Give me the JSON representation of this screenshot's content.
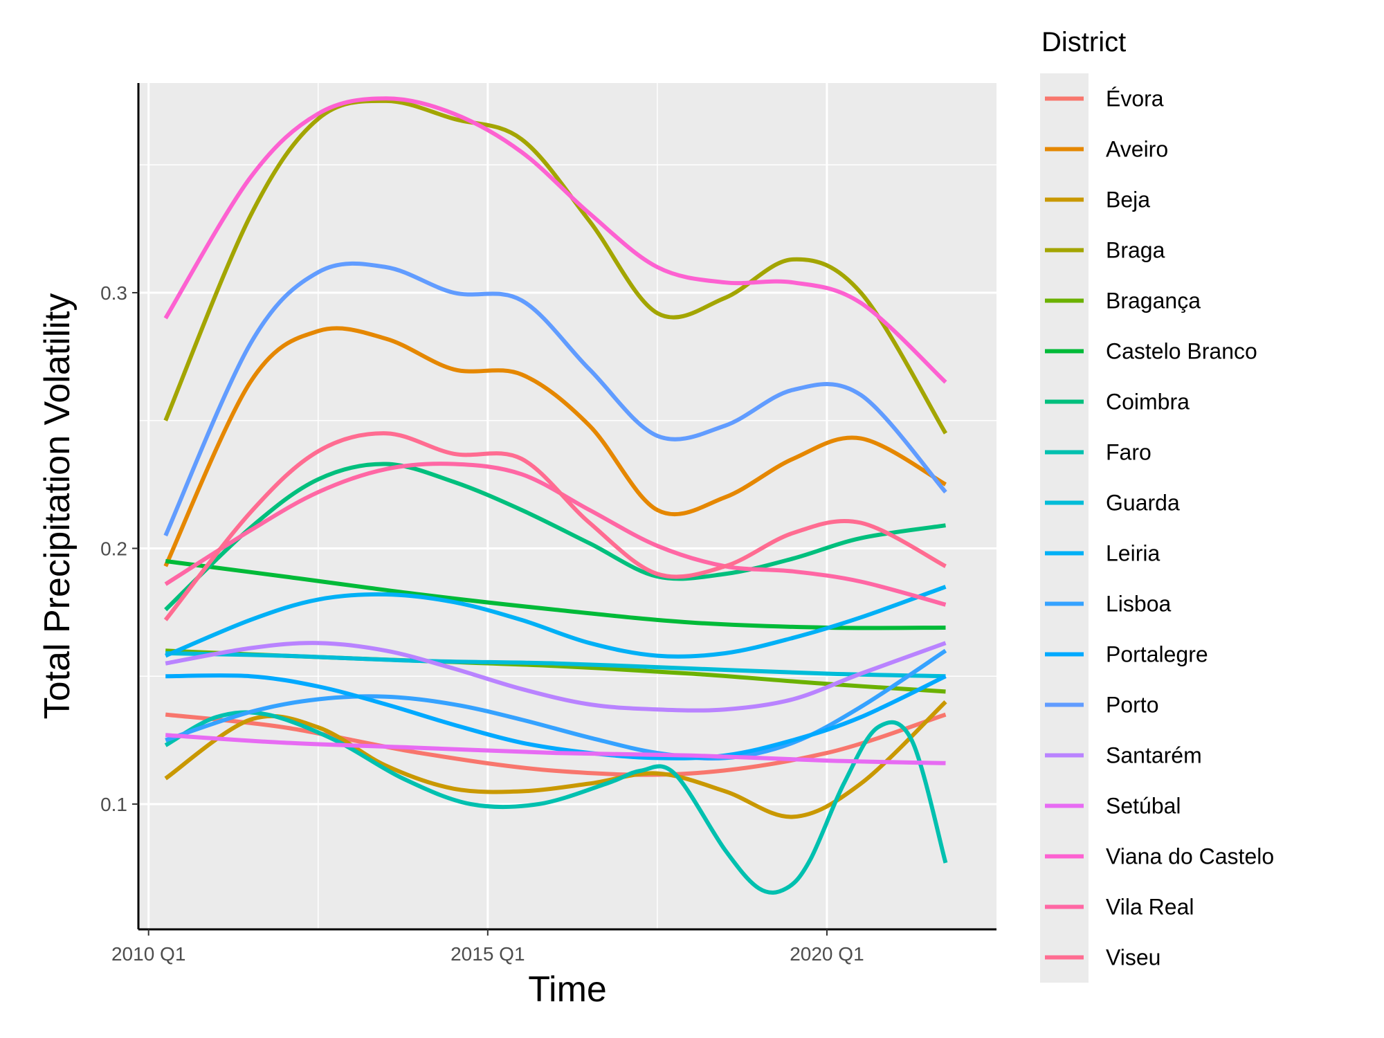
{
  "chart_data": {
    "type": "line",
    "title": "",
    "xlabel": "Time",
    "ylabel": "Total Precipitation Volatility",
    "x_ticks": [
      "2010 Q1",
      "2015 Q1",
      "2020 Q1"
    ],
    "y_ticks": [
      "0.1",
      "0.2",
      "0.3"
    ],
    "xlim": [
      2009.85,
      2022.5
    ],
    "ylim": [
      0.051,
      0.382
    ],
    "grid": true,
    "legend": {
      "title": "District",
      "position": "right"
    },
    "series": [
      {
        "name": "Évora",
        "color": "#F8766D",
        "x": [
          2010.25,
          2012,
          2014,
          2016,
          2018,
          2020,
          2021.75
        ],
        "y": [
          0.135,
          0.13,
          0.12,
          0.113,
          0.112,
          0.12,
          0.135
        ]
      },
      {
        "name": "Aveiro",
        "color": "#E58700",
        "x": [
          2010.25,
          2011.5,
          2012.5,
          2013.5,
          2014.5,
          2015.5,
          2016.5,
          2017.5,
          2018.5,
          2019.5,
          2020.5,
          2021.75
        ],
        "y": [
          0.193,
          0.265,
          0.285,
          0.282,
          0.27,
          0.268,
          0.248,
          0.215,
          0.22,
          0.235,
          0.243,
          0.225
        ]
      },
      {
        "name": "Beja",
        "color": "#C99800",
        "x": [
          2010.25,
          2011.5,
          2012.5,
          2013.5,
          2014.5,
          2015.5,
          2016.5,
          2017.5,
          2018.5,
          2019.5,
          2020.5,
          2021.75
        ],
        "y": [
          0.11,
          0.133,
          0.13,
          0.115,
          0.106,
          0.105,
          0.108,
          0.112,
          0.105,
          0.095,
          0.108,
          0.14
        ]
      },
      {
        "name": "Braga",
        "color": "#A3A500",
        "x": [
          2010.25,
          2011.5,
          2012.5,
          2013.5,
          2014.5,
          2015.5,
          2016.5,
          2017.5,
          2018.5,
          2019.5,
          2020.5,
          2021.75
        ],
        "y": [
          0.25,
          0.33,
          0.368,
          0.375,
          0.368,
          0.36,
          0.328,
          0.292,
          0.298,
          0.313,
          0.3,
          0.245
        ]
      },
      {
        "name": "Bragança",
        "color": "#6BB100",
        "x": [
          2010.25,
          2012,
          2014,
          2016,
          2018,
          2020,
          2021.75
        ],
        "y": [
          0.16,
          0.158,
          0.156,
          0.154,
          0.151,
          0.147,
          0.144
        ]
      },
      {
        "name": "Castelo Branco",
        "color": "#00BA38",
        "x": [
          2010.25,
          2012,
          2014,
          2016,
          2018,
          2020,
          2021.75
        ],
        "y": [
          0.195,
          0.189,
          0.182,
          0.176,
          0.171,
          0.169,
          0.169
        ]
      },
      {
        "name": "Coimbra",
        "color": "#00BF7D",
        "x": [
          2010.25,
          2011.5,
          2012.5,
          2013.5,
          2014.5,
          2015.5,
          2016.5,
          2017.5,
          2018.5,
          2019.5,
          2020.5,
          2021.75
        ],
        "y": [
          0.176,
          0.208,
          0.227,
          0.233,
          0.226,
          0.215,
          0.202,
          0.189,
          0.19,
          0.196,
          0.204,
          0.209
        ]
      },
      {
        "name": "Faro",
        "color": "#00C0AF",
        "x": [
          2010.25,
          2011,
          2011.75,
          2012.75,
          2013.75,
          2014.75,
          2015.75,
          2016.75,
          2017.25,
          2017.75,
          2018.5,
          2019,
          2019.4,
          2019.75,
          2020.25,
          2020.75,
          2021.25,
          2021.75
        ],
        "y": [
          0.123,
          0.134,
          0.135,
          0.125,
          0.11,
          0.1,
          0.1,
          0.108,
          0.113,
          0.112,
          0.082,
          0.067,
          0.067,
          0.078,
          0.108,
          0.13,
          0.125,
          0.077
        ]
      },
      {
        "name": "Guarda",
        "color": "#00BCD8",
        "x": [
          2010.25,
          2012,
          2014,
          2016,
          2018,
          2020,
          2021.75
        ],
        "y": [
          0.159,
          0.158,
          0.156,
          0.155,
          0.153,
          0.151,
          0.15
        ]
      },
      {
        "name": "Leiria",
        "color": "#00B0F6",
        "x": [
          2010.25,
          2011.5,
          2012.5,
          2013.5,
          2014.5,
          2015.5,
          2016.5,
          2017.5,
          2018.5,
          2019.5,
          2020.5,
          2021.75
        ],
        "y": [
          0.158,
          0.172,
          0.18,
          0.182,
          0.179,
          0.172,
          0.163,
          0.158,
          0.159,
          0.165,
          0.173,
          0.185
        ]
      },
      {
        "name": "Lisboa",
        "color": "#35A2FF",
        "x": [
          2010.25,
          2011.5,
          2012.5,
          2013.5,
          2014.5,
          2015.5,
          2016.5,
          2017.5,
          2018.5,
          2019.5,
          2020.5,
          2021.75
        ],
        "y": [
          0.125,
          0.136,
          0.141,
          0.142,
          0.139,
          0.133,
          0.126,
          0.12,
          0.118,
          0.124,
          0.138,
          0.16
        ]
      },
      {
        "name": "Portalegre",
        "color": "#00A9FF",
        "x": [
          2010.25,
          2011.5,
          2012.5,
          2013.5,
          2014.5,
          2015.5,
          2016.5,
          2017.5,
          2018.5,
          2019.5,
          2020.5,
          2021.75
        ],
        "y": [
          0.15,
          0.15,
          0.146,
          0.139,
          0.131,
          0.124,
          0.12,
          0.118,
          0.119,
          0.125,
          0.134,
          0.15
        ]
      },
      {
        "name": "Porto",
        "color": "#619CFF",
        "x": [
          2010.25,
          2011.5,
          2012.5,
          2013.5,
          2014.5,
          2015.5,
          2016.5,
          2017.5,
          2018.5,
          2019.5,
          2020.5,
          2021.75
        ],
        "y": [
          0.205,
          0.28,
          0.308,
          0.31,
          0.3,
          0.297,
          0.27,
          0.244,
          0.248,
          0.262,
          0.26,
          0.222
        ]
      },
      {
        "name": "Santarém",
        "color": "#B983FF",
        "x": [
          2010.25,
          2011.5,
          2012.5,
          2013.5,
          2014.5,
          2015.5,
          2016.5,
          2017.5,
          2018.5,
          2019.5,
          2020.5,
          2021.75
        ],
        "y": [
          0.155,
          0.161,
          0.163,
          0.16,
          0.153,
          0.145,
          0.139,
          0.137,
          0.137,
          0.141,
          0.151,
          0.163
        ]
      },
      {
        "name": "Setúbal",
        "color": "#E76BF3",
        "x": [
          2010.25,
          2012,
          2014,
          2016,
          2018,
          2020,
          2021.75
        ],
        "y": [
          0.127,
          0.124,
          0.122,
          0.12,
          0.119,
          0.117,
          0.116
        ]
      },
      {
        "name": "Viana do Castelo",
        "color": "#FD61D1",
        "x": [
          2010.25,
          2011.5,
          2012.5,
          2013.5,
          2014.5,
          2015.5,
          2016.5,
          2017.5,
          2018.5,
          2019.5,
          2020.5,
          2021.75
        ],
        "y": [
          0.29,
          0.345,
          0.37,
          0.376,
          0.37,
          0.355,
          0.331,
          0.31,
          0.304,
          0.304,
          0.296,
          0.265
        ]
      },
      {
        "name": "Vila Real",
        "color": "#FF67A4",
        "x": [
          2010.25,
          2011.5,
          2012.5,
          2013.5,
          2014.5,
          2015.5,
          2016.5,
          2017.5,
          2018.5,
          2019.5,
          2020.5,
          2021.75
        ],
        "y": [
          0.186,
          0.207,
          0.222,
          0.231,
          0.233,
          0.229,
          0.215,
          0.201,
          0.193,
          0.191,
          0.187,
          0.178
        ]
      },
      {
        "name": "Viseu",
        "color": "#FF6C91",
        "x": [
          2010.25,
          2011.5,
          2012.5,
          2013.5,
          2014.5,
          2015.5,
          2016.5,
          2017.5,
          2018.5,
          2019.5,
          2020.5,
          2021.75
        ],
        "y": [
          0.172,
          0.214,
          0.238,
          0.245,
          0.237,
          0.235,
          0.21,
          0.19,
          0.193,
          0.206,
          0.21,
          0.193
        ]
      }
    ]
  }
}
